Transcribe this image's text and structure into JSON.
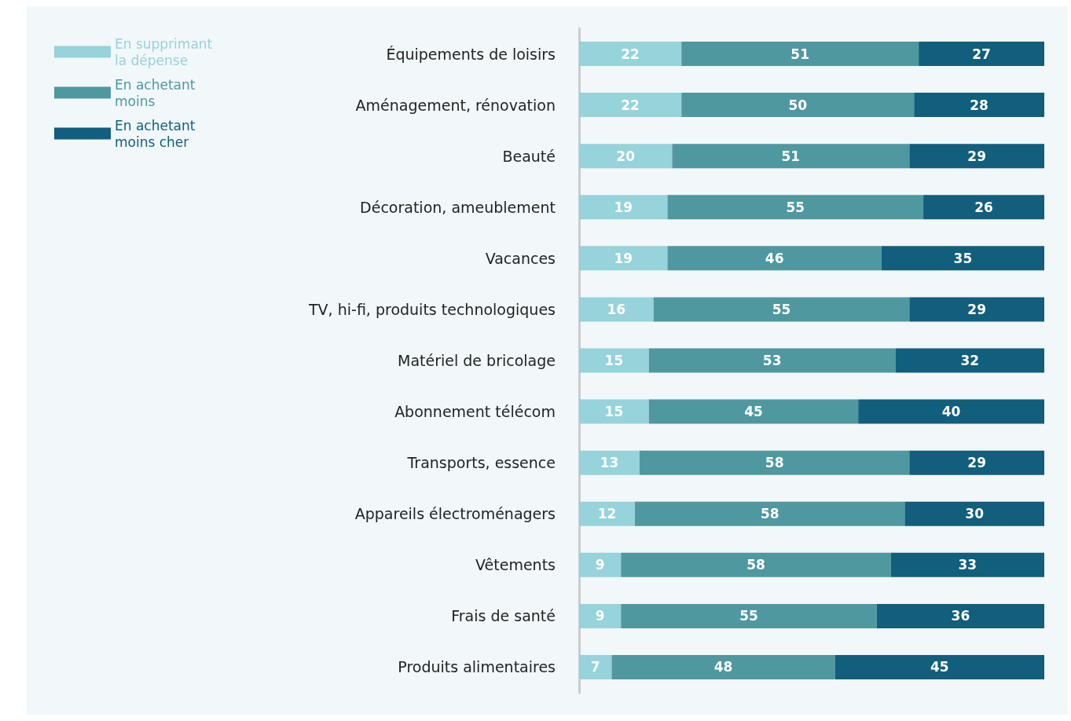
{
  "chart_data": {
    "type": "bar",
    "orientation": "horizontal",
    "stacked": true,
    "data_labels": true,
    "legend": "top left",
    "grid": false,
    "categories": [
      "Équipements de loisirs",
      "Aménagement, rénovation",
      "Beauté",
      "Décoration, ameublement",
      "Vacances",
      "TV, hi-fi, produits technologiques",
      "Matériel de bricolage",
      "Abonnement télécom",
      "Transports, essence",
      "Appareils électroménagers",
      "Vêtements",
      "Frais de santé",
      "Produits alimentaires"
    ],
    "series": [
      {
        "name": "En supprimant la dépense",
        "color": "#96d3da",
        "values": [
          22,
          22,
          20,
          19,
          19,
          16,
          15,
          15,
          13,
          12,
          9,
          9,
          7
        ]
      },
      {
        "name": "En achetant moins",
        "color": "#4f98a0",
        "values": [
          51,
          50,
          51,
          55,
          46,
          55,
          53,
          45,
          58,
          58,
          58,
          55,
          48
        ]
      },
      {
        "name": "En achetant moins cher",
        "color": "#115e7d",
        "values": [
          27,
          28,
          29,
          26,
          35,
          29,
          32,
          40,
          29,
          30,
          33,
          36,
          45
        ]
      }
    ]
  }
}
